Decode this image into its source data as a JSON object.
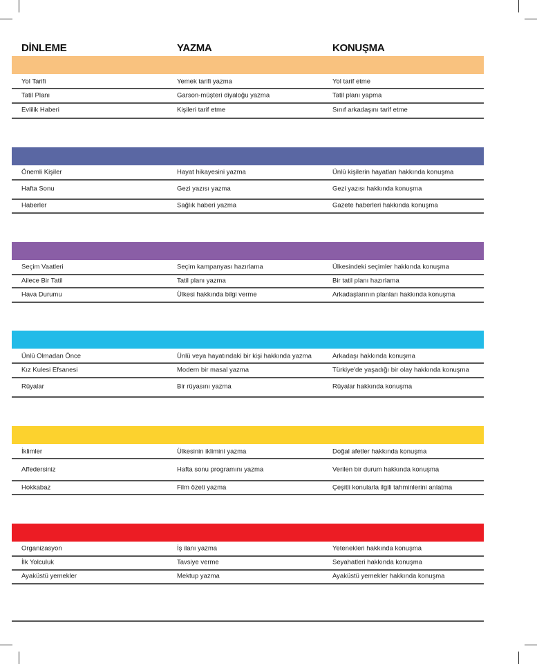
{
  "headers": [
    "DİNLEME",
    "YAZMA",
    "KONUŞMA"
  ],
  "sections": [
    {
      "color": "#F9C27F",
      "rows": [
        [
          "Yol Tarifi",
          "Yemek tarifi yazma",
          "Yol tarif etme"
        ],
        [
          "Tatil Planı",
          "Garson-müşteri diyaloğu yazma",
          "Tatil planı yapma"
        ],
        [
          "Evlilik Haberi",
          "Kişileri tarif etme",
          "Sınıf arkadaşını tarif etme"
        ]
      ]
    },
    {
      "color": "#5A67A3",
      "rows": [
        [
          "Önemli Kişiler",
          "Hayat hikayesini yazma",
          "Ünlü kişilerin hayatları hakkında konuşma"
        ],
        [
          "Hafta Sonu",
          "Gezi yazısı yazma",
          "Gezi yazısı hakkında konuşma"
        ],
        [
          "Haberler",
          "Sağlık haberi yazma",
          "Gazete haberleri hakkında konuşma"
        ]
      ]
    },
    {
      "color": "#8A5EA6",
      "rows": [
        [
          "Seçim Vaatleri",
          "Seçim kampanyası hazırlama",
          "Ülkesindeki seçimler hakkında konuşma"
        ],
        [
          "Ailece Bir Tatil",
          "Tatil planı yazma",
          "Bir tatil planı hazırlama"
        ],
        [
          "Hava Durumu",
          "Ülkesi hakkında bilgi verme",
          "Arkadaşlarının planları hakkında konuşma"
        ]
      ]
    },
    {
      "color": "#22BBE8",
      "rows": [
        [
          "Ünlü Olmadan Önce",
          "Ünlü veya hayatındaki bir kişi hakkında yazma",
          "Arkadaşı hakkında konuşma"
        ],
        [
          "Kız Kulesi Efsanesi",
          "Modern bir masal yazma",
          "Türkiye'de yaşadığı bir olay hakkında konuşma"
        ],
        [
          "Rüyalar",
          "Bir rüyasını yazma",
          "Rüyalar hakkında konuşma"
        ]
      ]
    },
    {
      "color": "#FCD22E",
      "rows": [
        [
          "İklimler",
          "Ülkesinin iklimini yazma",
          "Doğal afetler hakkında konuşma"
        ],
        [
          "Affedersiniz",
          "Hafta sonu programını yazma",
          "Verilen bir durum hakkında konuşma"
        ],
        [
          "Hokkabaz",
          "Film özeti yazma",
          "Çeşitli konularla ilgili tahminlerini anlatma"
        ]
      ]
    },
    {
      "color": "#EC1C24",
      "rows": [
        [
          "Organizasyon",
          "İş ilanı yazma",
          "Yetenekleri hakkında konuşma"
        ],
        [
          "İlk Yolculuk",
          "Tavsiye verme",
          "Seyahatleri hakkında konuşma"
        ],
        [
          "Ayaküstü yemekler",
          "Mektup yazma",
          "Ayaküstü yemekler hakkında konuşma"
        ]
      ]
    }
  ]
}
